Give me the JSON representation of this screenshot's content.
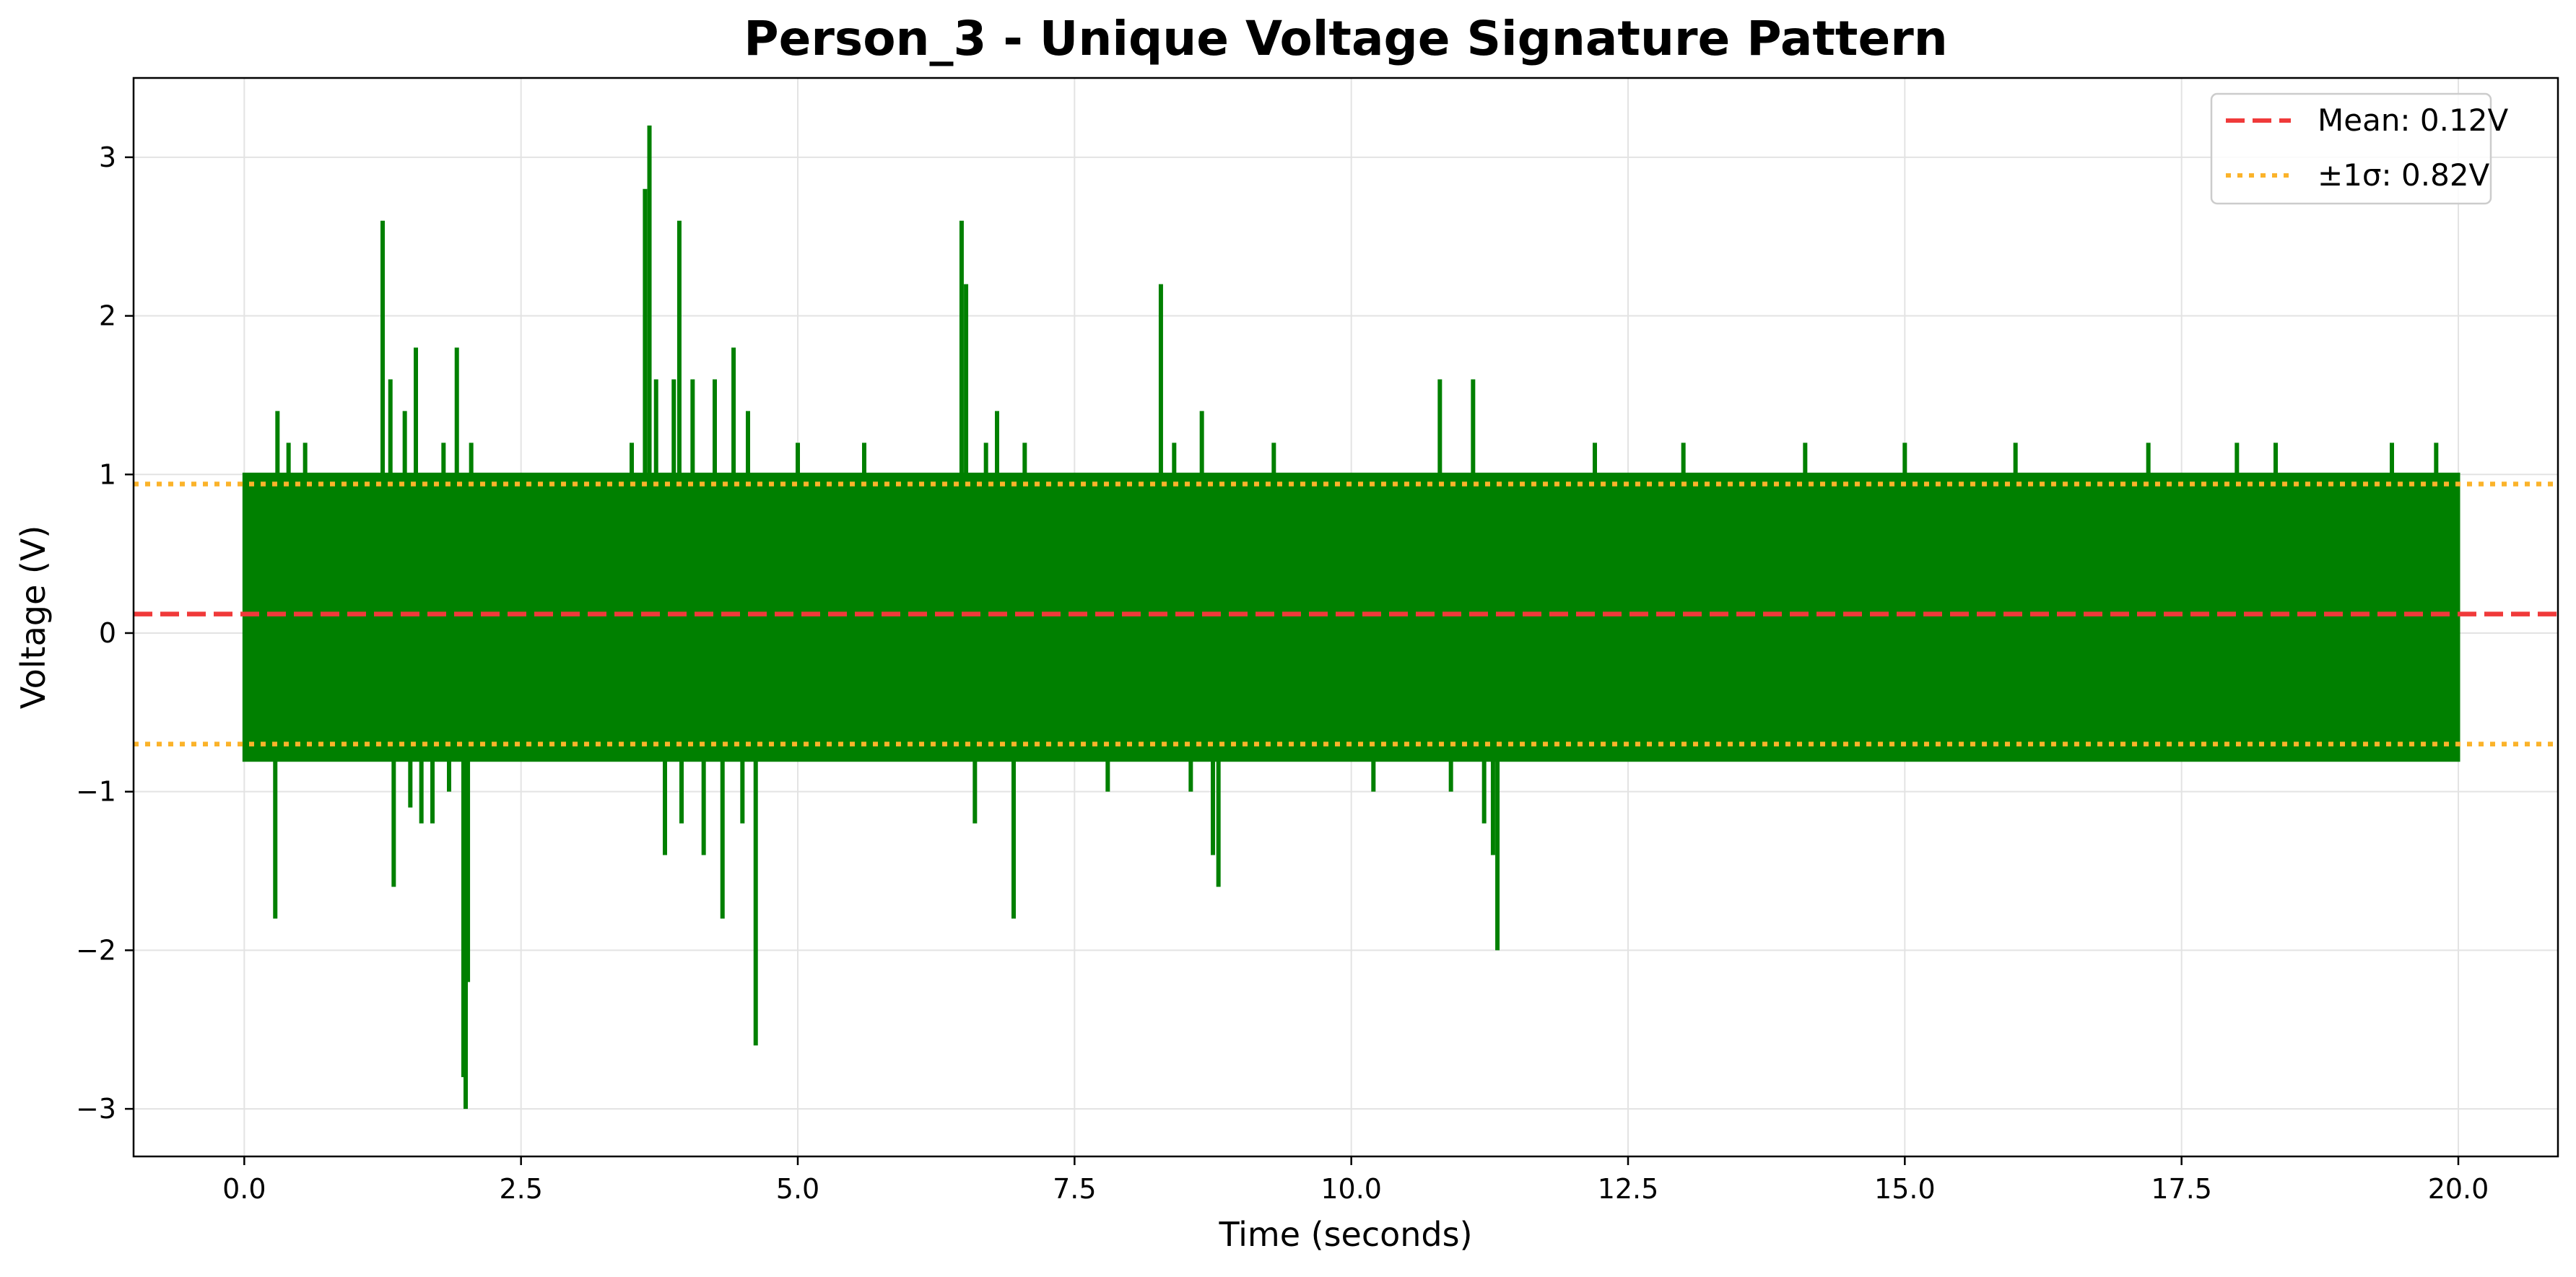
{
  "chart_data": {
    "type": "line",
    "title": "Person_3 - Unique Voltage Signature Pattern",
    "xlabel": "Time (seconds)",
    "ylabel": "Voltage (V)",
    "xlim": [
      -1.0,
      20.9
    ],
    "ylim": [
      -3.3,
      3.5
    ],
    "x_ticks": [
      0.0,
      2.5,
      5.0,
      7.5,
      10.0,
      12.5,
      15.0,
      17.5,
      20.0
    ],
    "x_tick_labels": [
      "0.0",
      "2.5",
      "5.0",
      "7.5",
      "10.0",
      "12.5",
      "15.0",
      "17.5",
      "20.0"
    ],
    "y_ticks": [
      -3,
      -2,
      -1,
      0,
      1,
      2,
      3
    ],
    "y_tick_labels": [
      "−3",
      "−2",
      "−1",
      "0",
      "1",
      "2",
      "3"
    ],
    "grid": true,
    "legend_position": "top-right",
    "colors": {
      "signal": "#008000",
      "mean": "#f03a3a",
      "sigma": "#fbb32a"
    },
    "series": [
      {
        "style": "solid",
        "envelope": {
          "x_range": [
            0.0,
            20.0
          ],
          "band_upper": 1.0,
          "band_lower": -0.8
        },
        "spikes": [
          {
            "x": 0.02,
            "y": -0.8
          },
          {
            "x": 0.28,
            "y": -1.8
          },
          {
            "x": 0.3,
            "y": 1.4
          },
          {
            "x": 0.4,
            "y": 1.2
          },
          {
            "x": 0.55,
            "y": 1.2
          },
          {
            "x": 1.25,
            "y": 2.6
          },
          {
            "x": 1.32,
            "y": 1.6
          },
          {
            "x": 1.35,
            "y": -1.6
          },
          {
            "x": 1.45,
            "y": 1.4
          },
          {
            "x": 1.5,
            "y": -1.1
          },
          {
            "x": 1.55,
            "y": 1.8
          },
          {
            "x": 1.6,
            "y": -1.2
          },
          {
            "x": 1.7,
            "y": -1.2
          },
          {
            "x": 1.8,
            "y": 1.2
          },
          {
            "x": 1.85,
            "y": -1.0
          },
          {
            "x": 1.92,
            "y": 1.8
          },
          {
            "x": 1.98,
            "y": -2.8
          },
          {
            "x": 2.0,
            "y": -3.0
          },
          {
            "x": 2.02,
            "y": -2.2
          },
          {
            "x": 2.05,
            "y": 1.2
          },
          {
            "x": 3.5,
            "y": 1.2
          },
          {
            "x": 3.62,
            "y": 2.8
          },
          {
            "x": 3.66,
            "y": 3.2
          },
          {
            "x": 3.72,
            "y": 1.6
          },
          {
            "x": 3.8,
            "y": -1.4
          },
          {
            "x": 3.88,
            "y": 1.6
          },
          {
            "x": 3.93,
            "y": 2.6
          },
          {
            "x": 3.95,
            "y": -1.2
          },
          {
            "x": 4.05,
            "y": 1.6
          },
          {
            "x": 4.15,
            "y": -1.4
          },
          {
            "x": 4.25,
            "y": 1.6
          },
          {
            "x": 4.32,
            "y": -1.8
          },
          {
            "x": 4.42,
            "y": 1.8
          },
          {
            "x": 4.5,
            "y": -1.2
          },
          {
            "x": 4.55,
            "y": 1.4
          },
          {
            "x": 4.62,
            "y": -2.6
          },
          {
            "x": 5.0,
            "y": 1.2
          },
          {
            "x": 5.6,
            "y": 1.2
          },
          {
            "x": 6.48,
            "y": 2.6
          },
          {
            "x": 6.52,
            "y": 2.2
          },
          {
            "x": 6.6,
            "y": -1.2
          },
          {
            "x": 6.7,
            "y": 1.2
          },
          {
            "x": 6.8,
            "y": 1.4
          },
          {
            "x": 6.95,
            "y": -1.8
          },
          {
            "x": 7.05,
            "y": 1.2
          },
          {
            "x": 7.8,
            "y": -1.0
          },
          {
            "x": 8.28,
            "y": 2.2
          },
          {
            "x": 8.4,
            "y": 1.2
          },
          {
            "x": 8.55,
            "y": -1.0
          },
          {
            "x": 8.65,
            "y": 1.4
          },
          {
            "x": 8.75,
            "y": -1.4
          },
          {
            "x": 8.8,
            "y": -1.6
          },
          {
            "x": 9.3,
            "y": 1.2
          },
          {
            "x": 10.2,
            "y": -1.0
          },
          {
            "x": 10.8,
            "y": 1.6
          },
          {
            "x": 10.9,
            "y": -1.0
          },
          {
            "x": 11.1,
            "y": 1.6
          },
          {
            "x": 11.2,
            "y": -1.2
          },
          {
            "x": 11.28,
            "y": -1.4
          },
          {
            "x": 11.32,
            "y": -2.0
          },
          {
            "x": 12.2,
            "y": 1.2
          },
          {
            "x": 13.0,
            "y": 1.2
          },
          {
            "x": 14.1,
            "y": 1.2
          },
          {
            "x": 15.0,
            "y": 1.2
          },
          {
            "x": 16.0,
            "y": 1.2
          },
          {
            "x": 17.2,
            "y": 1.2
          },
          {
            "x": 18.0,
            "y": 1.2
          },
          {
            "x": 18.35,
            "y": 1.2
          },
          {
            "x": 19.4,
            "y": 1.2
          },
          {
            "x": 19.8,
            "y": 1.2
          }
        ]
      },
      {
        "name": "Mean: 0.12V",
        "style": "dashed",
        "type": "hline",
        "y": 0.12
      },
      {
        "name": "±1σ: 0.82V",
        "style": "dotted",
        "type": "hline_pair",
        "y": [
          0.94,
          -0.7
        ]
      }
    ]
  }
}
